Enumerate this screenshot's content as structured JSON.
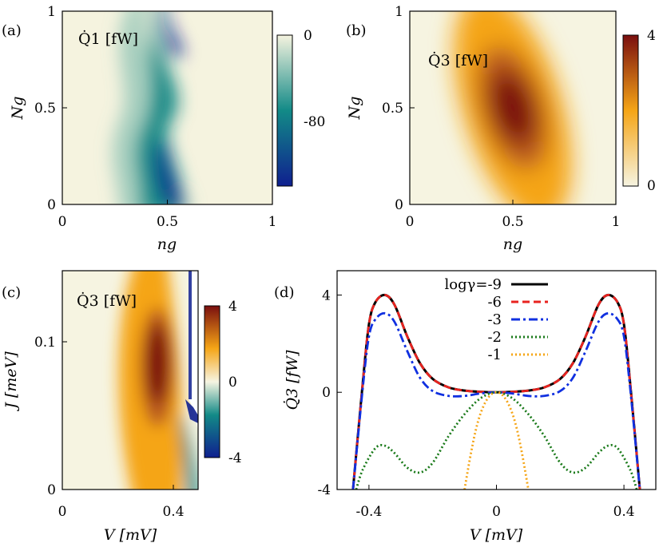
{
  "panels": {
    "a": {
      "label": "(a)",
      "title": "Q̇1 [fW]",
      "xlabel": "ng",
      "ylabel": "Ng",
      "xticks": [
        "0",
        "0.5",
        "1"
      ],
      "yticks": [
        "0",
        "0.5",
        "1"
      ],
      "colorbar": {
        "ticks": [
          "0",
          "-80"
        ],
        "colors": [
          "#f5f3df",
          "#128a87",
          "#0f1f8f"
        ]
      }
    },
    "b": {
      "label": "(b)",
      "title": "Q̇3 [fW]",
      "xlabel": "ng",
      "ylabel": "Ng",
      "xticks": [
        "0",
        "0.5",
        "1"
      ],
      "yticks": [
        "0",
        "0.5",
        "1"
      ],
      "colorbar": {
        "ticks": [
          "4",
          "0"
        ],
        "colors": [
          "#7a0f0f",
          "#f5a516",
          "#f6f4e1"
        ]
      }
    },
    "c": {
      "label": "(c)",
      "title": "Q̇3 [fW]",
      "xlabel": "V [mV]",
      "ylabel": "J [meV]",
      "xticks": [
        "0",
        "0.4"
      ],
      "yticks": [
        "0",
        "0.1"
      ],
      "colorbar": {
        "ticks": [
          "4",
          "0",
          "-4"
        ],
        "colors": [
          "#7a0f0f",
          "#f5a516",
          "#f6f4e1",
          "#128a87",
          "#0f1f8f"
        ]
      }
    },
    "d": {
      "label": "(d)",
      "xlabel": "V [mV]",
      "ylabel": "Q̇3 [fW]",
      "xticks": [
        "-0.4",
        "0",
        "0.4"
      ],
      "yticks": [
        "4",
        "0",
        "-4"
      ]
    }
  },
  "chart_data": [
    {
      "type": "heatmap",
      "panel": "a",
      "title": "Q̇1 [fW]",
      "xlabel": "ng",
      "ylabel": "Ng",
      "xlim": [
        0,
        1
      ],
      "ylim": [
        0,
        1
      ],
      "zlim": [
        -100,
        0
      ],
      "colorbar_ticks": [
        0,
        -80
      ],
      "description_points": [
        {
          "x": 0.5,
          "y": 0.05,
          "z": -100
        },
        {
          "x": 0.5,
          "y": 0.95,
          "z": -100
        },
        {
          "x": 0.45,
          "y": 0.5,
          "z": -55
        },
        {
          "x": 0.1,
          "y": 0.5,
          "z": 0
        }
      ]
    },
    {
      "type": "heatmap",
      "panel": "b",
      "title": "Q̇3 [fW]",
      "xlabel": "ng",
      "ylabel": "Ng",
      "xlim": [
        0,
        1
      ],
      "ylim": [
        0,
        1
      ],
      "zlim": [
        0,
        4
      ],
      "colorbar_ticks": [
        4,
        0
      ],
      "description_points": [
        {
          "x": 0.5,
          "y": 0.5,
          "z": 4
        },
        {
          "x": 0.5,
          "y": 0.0,
          "z": 0.3
        },
        {
          "x": 0.5,
          "y": 1.0,
          "z": 0.3
        }
      ]
    },
    {
      "type": "heatmap",
      "panel": "c",
      "title": "Q̇3 [fW]",
      "xlabel": "V [mV]",
      "ylabel": "J [meV]",
      "xlim": [
        0,
        0.5
      ],
      "ylim": [
        0,
        0.15
      ],
      "zlim": [
        -4,
        4
      ],
      "colorbar_ticks": [
        4,
        0,
        -4
      ],
      "description_points": [
        {
          "x": 0.35,
          "y": 0.08,
          "z": 4
        },
        {
          "x": 0.46,
          "y": 0.03,
          "z": -4
        }
      ]
    },
    {
      "type": "line",
      "panel": "d",
      "xlabel": "V [mV]",
      "ylabel": "Q̇3 [fW]",
      "xlim": [
        -0.5,
        0.5
      ],
      "ylim": [
        -4,
        5
      ],
      "legend_title": "logγ=",
      "series": [
        {
          "name": "-9",
          "color": "#000000",
          "style": "solid",
          "x": [
            -0.45,
            -0.42,
            -0.4,
            -0.38,
            -0.35,
            -0.32,
            -0.28,
            -0.24,
            -0.2,
            -0.15,
            -0.1,
            -0.05,
            0,
            0.05,
            0.1,
            0.15,
            0.2,
            0.24,
            0.28,
            0.32,
            0.35,
            0.38,
            0.4,
            0.42,
            0.45
          ],
          "y": [
            -4,
            0.3,
            2.8,
            3.7,
            4,
            3.6,
            2.3,
            1.2,
            0.55,
            0.2,
            0.07,
            0.02,
            0,
            0.02,
            0.07,
            0.2,
            0.55,
            1.2,
            2.3,
            3.6,
            4,
            3.7,
            2.8,
            0.3,
            -4
          ]
        },
        {
          "name": "-6",
          "color": "#e8231f",
          "style": "dashed",
          "x": [
            -0.45,
            -0.42,
            -0.4,
            -0.38,
            -0.35,
            -0.32,
            -0.28,
            -0.24,
            -0.2,
            -0.15,
            -0.1,
            -0.05,
            0,
            0.05,
            0.1,
            0.15,
            0.2,
            0.24,
            0.28,
            0.32,
            0.35,
            0.38,
            0.4,
            0.42,
            0.45
          ],
          "y": [
            -4,
            0.3,
            2.8,
            3.7,
            4,
            3.6,
            2.3,
            1.2,
            0.55,
            0.2,
            0.07,
            0.02,
            0,
            0.02,
            0.07,
            0.2,
            0.55,
            1.2,
            2.3,
            3.6,
            4,
            3.7,
            2.8,
            0.3,
            -4
          ]
        },
        {
          "name": "-3",
          "color": "#1030e0",
          "style": "dashdot",
          "x": [
            -0.45,
            -0.42,
            -0.4,
            -0.38,
            -0.35,
            -0.32,
            -0.28,
            -0.24,
            -0.2,
            -0.15,
            -0.1,
            -0.05,
            0,
            0.05,
            0.1,
            0.15,
            0.2,
            0.24,
            0.28,
            0.32,
            0.35,
            0.38,
            0.4,
            0.42,
            0.45
          ],
          "y": [
            -4,
            0.1,
            2.3,
            3.0,
            3.25,
            2.9,
            1.7,
            0.6,
            0.05,
            -0.15,
            -0.15,
            -0.05,
            0,
            -0.05,
            -0.15,
            -0.15,
            0.05,
            0.6,
            1.7,
            2.9,
            3.25,
            3.0,
            2.3,
            0.1,
            -4
          ]
        },
        {
          "name": "-2",
          "color": "#1a7a1a",
          "style": "dotted",
          "x": [
            -0.44,
            -0.42,
            -0.38,
            -0.35,
            -0.32,
            -0.28,
            -0.24,
            -0.2,
            -0.15,
            -0.1,
            -0.05,
            0,
            0.05,
            0.1,
            0.15,
            0.2,
            0.24,
            0.28,
            0.32,
            0.35,
            0.38,
            0.42,
            0.44
          ],
          "y": [
            -4,
            -3.2,
            -2.3,
            -2.2,
            -2.5,
            -3.1,
            -3.3,
            -2.9,
            -1.8,
            -0.9,
            -0.25,
            0,
            -0.25,
            -0.9,
            -1.8,
            -2.9,
            -3.3,
            -3.1,
            -2.5,
            -2.2,
            -2.3,
            -3.2,
            -4
          ]
        },
        {
          "name": "-1",
          "color": "#f5a516",
          "style": "dotted",
          "x": [
            -0.1,
            -0.08,
            -0.06,
            -0.04,
            -0.02,
            0,
            0.02,
            0.04,
            0.06,
            0.08,
            0.1
          ],
          "y": [
            -4,
            -2.5,
            -1.3,
            -0.55,
            -0.13,
            0,
            -0.13,
            -0.55,
            -1.3,
            -2.5,
            -4
          ]
        }
      ]
    }
  ]
}
